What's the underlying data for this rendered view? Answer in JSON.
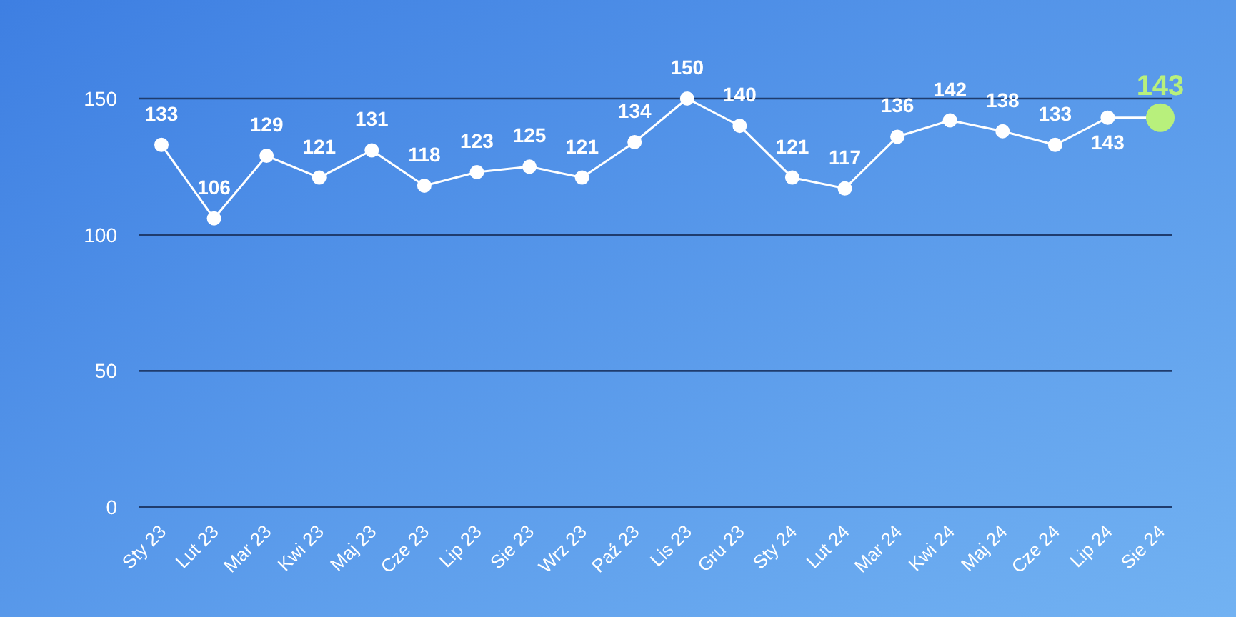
{
  "chart_data": {
    "type": "line",
    "categories": [
      "Sty 23",
      "Lut 23",
      "Mar 23",
      "Kwi 23",
      "Maj 23",
      "Cze 23",
      "Lip 23",
      "Sie 23",
      "Wrz 23",
      "Paź 23",
      "Lis 23",
      "Gru 23",
      "Sty 24",
      "Lut 24",
      "Mar 24",
      "Kwi 24",
      "Maj 24",
      "Cze 24",
      "Lip 24",
      "Sie 24"
    ],
    "series": [
      {
        "color": "#ffffff",
        "values": [
          133,
          106,
          129,
          121,
          131,
          118,
          123,
          125,
          121,
          134,
          150,
          140,
          121,
          117,
          136,
          142,
          138,
          133,
          143,
          143
        ],
        "colors": [
          "#ffffff",
          "#ffffff",
          "#ffffff",
          "#ffffff",
          "#ffffff",
          "#ffffff",
          "#ffffff",
          "#ffffff",
          "#ffffff",
          "#ffffff",
          "#ffffff",
          "#ffffff",
          "#ffffff",
          "#ffffff",
          "#ffffff",
          "#ffffff",
          "#ffffff",
          "#ffffff",
          "#ffffff",
          "#b8f07c"
        ]
      }
    ],
    "ylim": [
      0,
      150
    ],
    "yticks": [
      0,
      50,
      100,
      150
    ],
    "grid": "y",
    "data_labels": true,
    "marker": "circle",
    "line_style": "solid"
  }
}
